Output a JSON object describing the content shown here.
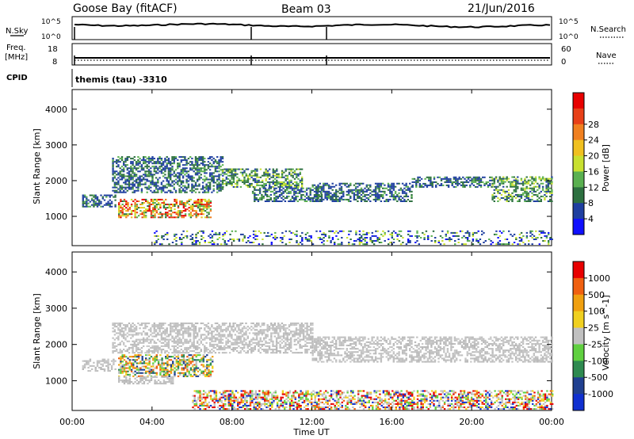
{
  "header": {
    "site": "Goose Bay (fitACF)",
    "beam": "Beam 03",
    "date": "21/Jun/2016"
  },
  "status_panels": {
    "nsky_label": "N.Sky",
    "nsearch_label": "N.Search",
    "noise_ticks": [
      "10^5",
      "10^0"
    ],
    "freq_label_1": "Freq.",
    "freq_label_2": "[MHz]",
    "freq_ticks": [
      "18",
      "8"
    ],
    "nave_label": "Nave",
    "nave_ticks": [
      "60",
      "0"
    ],
    "cpid_label": "CPID",
    "cpid_text": "themis (tau) -3310"
  },
  "chart_data": [
    {
      "type": "heatmap",
      "name": "power",
      "ylabel": "Slant Range [km]",
      "xlabel": "",
      "xlim": [
        0,
        24
      ],
      "ylim": [
        180,
        4550
      ],
      "yticks": [
        1000,
        2000,
        3000,
        4000
      ],
      "colorbar": {
        "label": "Power [dB]",
        "ticks": [
          "4",
          "8",
          "12",
          "16",
          "20",
          "24",
          "28"
        ],
        "colors": [
          "#1010ff",
          "#1f3fa0",
          "#2d7040",
          "#5ab050",
          "#c8e030",
          "#f0c020",
          "#f08020",
          "#e84018",
          "#e80000"
        ]
      },
      "echo_regions": [
        {
          "t": [
            0.5,
            2.2
          ],
          "range": [
            1250,
            1600
          ],
          "level": "low"
        },
        {
          "t": [
            2.3,
            6.9
          ],
          "range": [
            950,
            1450
          ],
          "level": "high"
        },
        {
          "t": [
            2.0,
            7.5
          ],
          "range": [
            1650,
            2650
          ],
          "level": "low"
        },
        {
          "t": [
            7.5,
            11.5
          ],
          "range": [
            1800,
            2300
          ],
          "level": "mid"
        },
        {
          "t": [
            9.0,
            12.5
          ],
          "range": [
            1400,
            1800
          ],
          "level": "low"
        },
        {
          "t": [
            12.0,
            17.0
          ],
          "range": [
            1400,
            1900
          ],
          "level": "low"
        },
        {
          "t": [
            17.0,
            21.0
          ],
          "range": [
            1800,
            2100
          ],
          "level": "low"
        },
        {
          "t": [
            21.0,
            24.0
          ],
          "range": [
            1400,
            2100
          ],
          "level": "mid"
        },
        {
          "t": [
            4.0,
            24.0
          ],
          "range": [
            200,
            600
          ],
          "level": "ground"
        }
      ]
    },
    {
      "type": "heatmap",
      "name": "velocity",
      "ylabel": "Slant Range [km]",
      "xlabel": "Time UT",
      "xlim": [
        0,
        24
      ],
      "ylim": [
        180,
        4550
      ],
      "yticks": [
        1000,
        2000,
        3000,
        4000
      ],
      "xticks": [
        "00:00",
        "04:00",
        "08:00",
        "12:00",
        "16:00",
        "20:00",
        "00:00"
      ],
      "colorbar": {
        "label": "Velocity [m s^-1]",
        "ticks": [
          "1000",
          "500",
          "100",
          "25",
          "-25",
          "-100",
          "-500",
          "-1000"
        ],
        "colors": [
          "#1030d0",
          "#204090",
          "#2e8a50",
          "#60d040",
          "#c0c0c0",
          "#f0d020",
          "#f0a010",
          "#f06010",
          "#e80000"
        ]
      },
      "echo_regions": [
        {
          "t": [
            0.5,
            2.2
          ],
          "range": [
            1250,
            1600
          ],
          "level": "ground"
        },
        {
          "t": [
            2.3,
            7.0
          ],
          "range": [
            1100,
            1700
          ],
          "level": "ionos"
        },
        {
          "t": [
            2.3,
            5.0
          ],
          "range": [
            900,
            1100
          ],
          "level": "ground"
        },
        {
          "t": [
            2.0,
            12.0
          ],
          "range": [
            1750,
            2600
          ],
          "level": "ground"
        },
        {
          "t": [
            12.0,
            24.0
          ],
          "range": [
            1500,
            2200
          ],
          "level": "ground"
        },
        {
          "t": [
            6.0,
            24.0
          ],
          "range": [
            200,
            700
          ],
          "level": "mixed"
        }
      ]
    }
  ]
}
